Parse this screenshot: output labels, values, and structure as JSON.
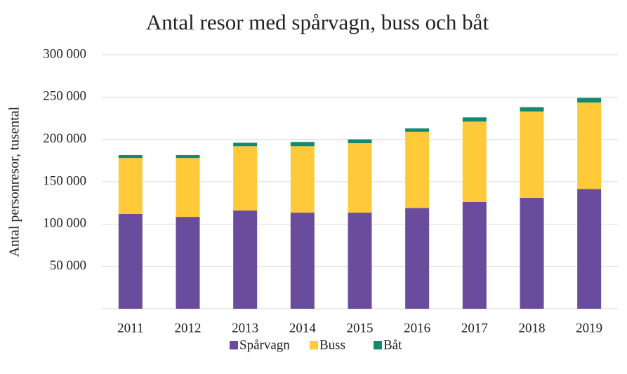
{
  "chart_data": {
    "type": "stacked_bar",
    "title": "Antal resor med spårvagn, buss och båt",
    "y_label": "Antal personresor, tusental",
    "categories": [
      "2011",
      "2012",
      "2013",
      "2014",
      "2015",
      "2016",
      "2017",
      "2018",
      "2019"
    ],
    "series": [
      {
        "name": "Spårvagn",
        "color": "#6a4c9c",
        "values": [
          112000,
          108500,
          116000,
          113500,
          113500,
          119000,
          126000,
          131000,
          141500
        ]
      },
      {
        "name": "Buss",
        "color": "#ffca3a",
        "values": [
          66000,
          69500,
          76000,
          78500,
          82000,
          90000,
          95000,
          102000,
          102000
        ]
      },
      {
        "name": "Båt",
        "color": "#138a6f",
        "values": [
          3500,
          3500,
          4000,
          5000,
          4500,
          4000,
          5000,
          5000,
          5500
        ]
      }
    ],
    "ylim": [
      0,
      300000
    ],
    "yticks": [
      {
        "value": 50000,
        "label": "50 000"
      },
      {
        "value": 100000,
        "label": "100 000"
      },
      {
        "value": 150000,
        "label": "150 000"
      },
      {
        "value": 200000,
        "label": "200 000"
      },
      {
        "value": 250000,
        "label": "250 000"
      },
      {
        "value": 300000,
        "label": "300 000"
      }
    ],
    "grid": true,
    "legend": "bottom"
  }
}
